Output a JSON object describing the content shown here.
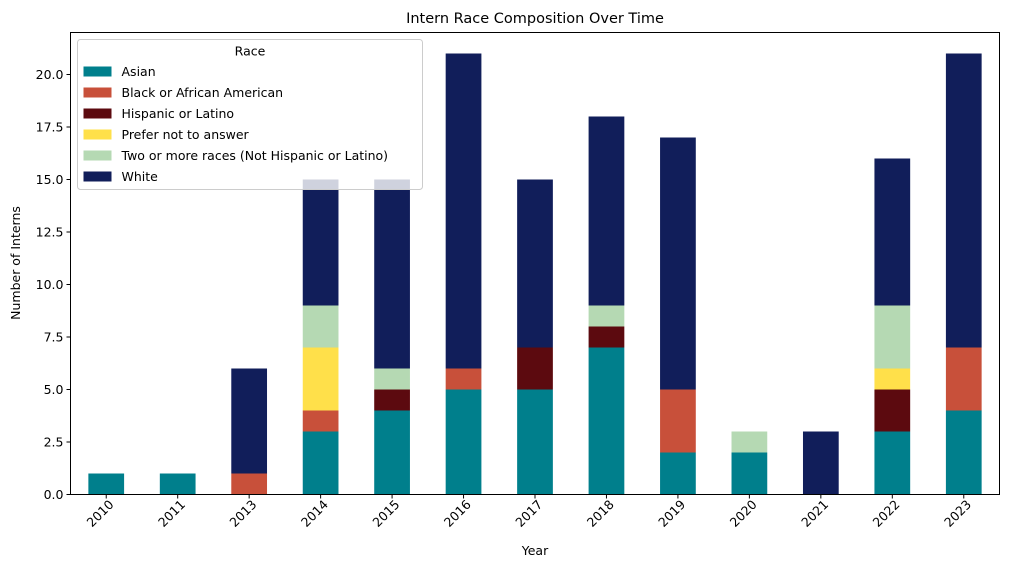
{
  "chart_data": {
    "type": "bar",
    "stacked": true,
    "title": "Intern Race Composition Over Time",
    "xlabel": "Year",
    "ylabel": "Number of Interns",
    "categories": [
      "2010",
      "2011",
      "2013",
      "2014",
      "2015",
      "2016",
      "2017",
      "2018",
      "2019",
      "2020",
      "2021",
      "2022",
      "2023"
    ],
    "ylim": [
      0,
      22
    ],
    "yticks": [
      0.0,
      2.5,
      5.0,
      7.5,
      10.0,
      12.5,
      15.0,
      17.5,
      20.0
    ],
    "ytick_labels": [
      "0.0",
      "2.5",
      "5.0",
      "7.5",
      "10.0",
      "12.5",
      "15.0",
      "17.5",
      "20.0"
    ],
    "grid": false,
    "legend": {
      "title": "Race",
      "placement": "top-left"
    },
    "series": [
      {
        "name": "Asian",
        "color": "#007f8c",
        "values": [
          1,
          1,
          0,
          3,
          4,
          5,
          5,
          7,
          2,
          2,
          0,
          3,
          4
        ]
      },
      {
        "name": "Black or African American",
        "color": "#c8503a",
        "values": [
          0,
          0,
          1,
          1,
          0,
          1,
          0,
          0,
          3,
          0,
          0,
          0,
          3
        ]
      },
      {
        "name": "Hispanic or Latino",
        "color": "#5c0a0f",
        "values": [
          0,
          0,
          0,
          0,
          1,
          0,
          2,
          1,
          0,
          0,
          0,
          2,
          0
        ]
      },
      {
        "name": "Prefer not to answer",
        "color": "#ffe04a",
        "values": [
          0,
          0,
          0,
          3,
          0,
          0,
          0,
          0,
          0,
          0,
          0,
          1,
          0
        ]
      },
      {
        "name": "Two or more races (Not Hispanic or Latino)",
        "color": "#b5d9b3",
        "values": [
          0,
          0,
          0,
          2,
          1,
          0,
          0,
          1,
          0,
          1,
          0,
          3,
          0
        ]
      },
      {
        "name": "White",
        "color": "#111e5a",
        "values": [
          0,
          0,
          5,
          6,
          9,
          15,
          8,
          9,
          12,
          0,
          3,
          7,
          14
        ]
      }
    ]
  }
}
